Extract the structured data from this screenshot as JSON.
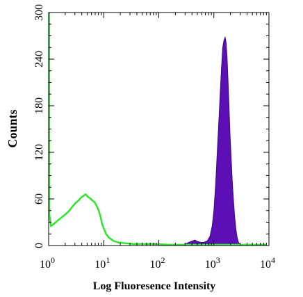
{
  "chart_data": {
    "type": "area",
    "xlabel": "Log Fluoresence Intensity",
    "ylabel": "Counts",
    "x_scale": "log",
    "xlim": [
      1,
      10000
    ],
    "ylim": [
      0,
      300
    ],
    "x_ticks": [
      {
        "value": 1,
        "base": "10",
        "exp": "0"
      },
      {
        "value": 10,
        "base": "10",
        "exp": "1"
      },
      {
        "value": 100,
        "base": "10",
        "exp": "2"
      },
      {
        "value": 1000,
        "base": "10",
        "exp": "3"
      },
      {
        "value": 10000,
        "base": "10",
        "exp": "4"
      }
    ],
    "y_ticks": [
      "0",
      "60",
      "120",
      "180",
      "240",
      "300"
    ],
    "grid": false,
    "legend": "none",
    "series": [
      {
        "style": "filled",
        "color": "#5b0fb5",
        "points": [
          [
            200,
            0
          ],
          [
            300,
            2
          ],
          [
            380,
            5
          ],
          [
            450,
            7
          ],
          [
            520,
            5
          ],
          [
            580,
            4
          ],
          [
            650,
            4
          ],
          [
            760,
            6
          ],
          [
            850,
            12
          ],
          [
            930,
            25
          ],
          [
            1000,
            45
          ],
          [
            1080,
            80
          ],
          [
            1150,
            120
          ],
          [
            1230,
            160
          ],
          [
            1300,
            195
          ],
          [
            1380,
            230
          ],
          [
            1450,
            255
          ],
          [
            1520,
            264
          ],
          [
            1600,
            268
          ],
          [
            1660,
            262
          ],
          [
            1730,
            245
          ],
          [
            1800,
            215
          ],
          [
            1880,
            180
          ],
          [
            1960,
            145
          ],
          [
            2050,
            115
          ],
          [
            2150,
            85
          ],
          [
            2260,
            60
          ],
          [
            2380,
            38
          ],
          [
            2500,
            22
          ],
          [
            2650,
            10
          ],
          [
            2800,
            4
          ],
          [
            3000,
            1
          ],
          [
            3300,
            0
          ]
        ]
      },
      {
        "style": "line",
        "color": "#2ee62e",
        "points": [
          [
            1.02,
            310
          ],
          [
            1.03,
            40
          ],
          [
            1.1,
            25
          ],
          [
            1.25,
            28
          ],
          [
            1.45,
            32
          ],
          [
            1.7,
            36
          ],
          [
            2.0,
            40
          ],
          [
            2.3,
            44
          ],
          [
            2.7,
            50
          ],
          [
            3.1,
            55
          ],
          [
            3.5,
            58
          ],
          [
            3.9,
            62
          ],
          [
            4.3,
            64
          ],
          [
            4.7,
            66
          ],
          [
            5.1,
            63
          ],
          [
            5.6,
            61
          ],
          [
            6.2,
            58
          ],
          [
            6.8,
            56
          ],
          [
            7.3,
            52
          ],
          [
            7.8,
            48
          ],
          [
            8.3,
            43
          ],
          [
            8.8,
            36
          ],
          [
            9.3,
            28
          ],
          [
            10,
            22
          ],
          [
            11,
            15
          ],
          [
            12.5,
            10
          ],
          [
            15,
            6
          ],
          [
            18,
            4
          ],
          [
            24,
            3
          ],
          [
            35,
            2
          ],
          [
            55,
            2
          ],
          [
            90,
            2
          ],
          [
            150,
            1
          ],
          [
            300,
            1
          ],
          [
            700,
            1
          ],
          [
            2000,
            1
          ],
          [
            9000,
            1
          ]
        ]
      }
    ]
  }
}
